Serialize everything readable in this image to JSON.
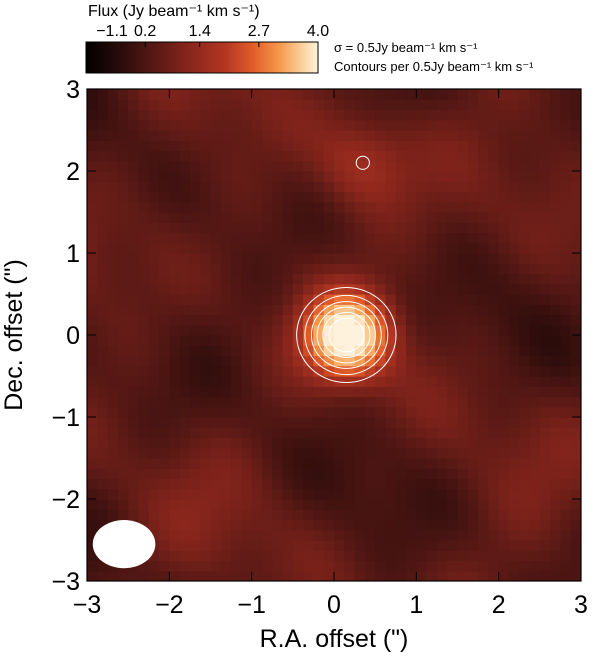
{
  "chart_data": {
    "type": "heatmap",
    "xlabel": "R.A. offset (\")",
    "ylabel": "Dec. offset (\")",
    "xlim": [
      -3,
      3
    ],
    "ylim": [
      -3,
      3
    ],
    "xticks": [
      "−3",
      "−2",
      "−1",
      "0",
      "1",
      "2",
      "3"
    ],
    "yticks": [
      "3",
      "2",
      "1",
      "0",
      "−1",
      "−2",
      "−3"
    ],
    "xtick_values": [
      -3,
      -2,
      -1,
      0,
      1,
      2,
      3
    ],
    "ytick_values": [
      3,
      2,
      1,
      0,
      -1,
      -2,
      -3
    ],
    "colorbar": {
      "title": "Flux (Jy beam⁻¹ km s⁻¹)",
      "ticks": [
        "−1.1",
        "0.2",
        "1.4",
        "2.7",
        "4.0"
      ],
      "tick_values": [
        -1.1,
        0.2,
        1.4,
        2.7,
        4.0
      ],
      "range": [
        -1.1,
        4.0
      ],
      "placement": "top"
    },
    "annotations": [
      "σ =  0.5Jy beam⁻¹ km s⁻¹",
      "Contours per  0.5Jy beam⁻¹ km s⁻¹"
    ],
    "contour_levels": [
      1.0,
      1.5,
      2.0,
      2.5,
      3.0,
      3.5
    ],
    "contour_color": "#ffffff",
    "peak": {
      "x": 0.15,
      "y": 0.0,
      "value": 4.0
    },
    "secondary_peak": {
      "x": 0.35,
      "y": 2.1,
      "value": 1.0
    },
    "beam": {
      "x": -2.55,
      "y": -2.55,
      "major_arcsec": 1.0,
      "minor_arcsec": 0.7,
      "color": "#ffffff"
    },
    "colormap": [
      "#000000",
      "#2a0c0b",
      "#591915",
      "#8a261c",
      "#b33621",
      "#e25d2a",
      "#f5964a",
      "#fbd09a",
      "#fff2dc"
    ],
    "grid": false
  }
}
